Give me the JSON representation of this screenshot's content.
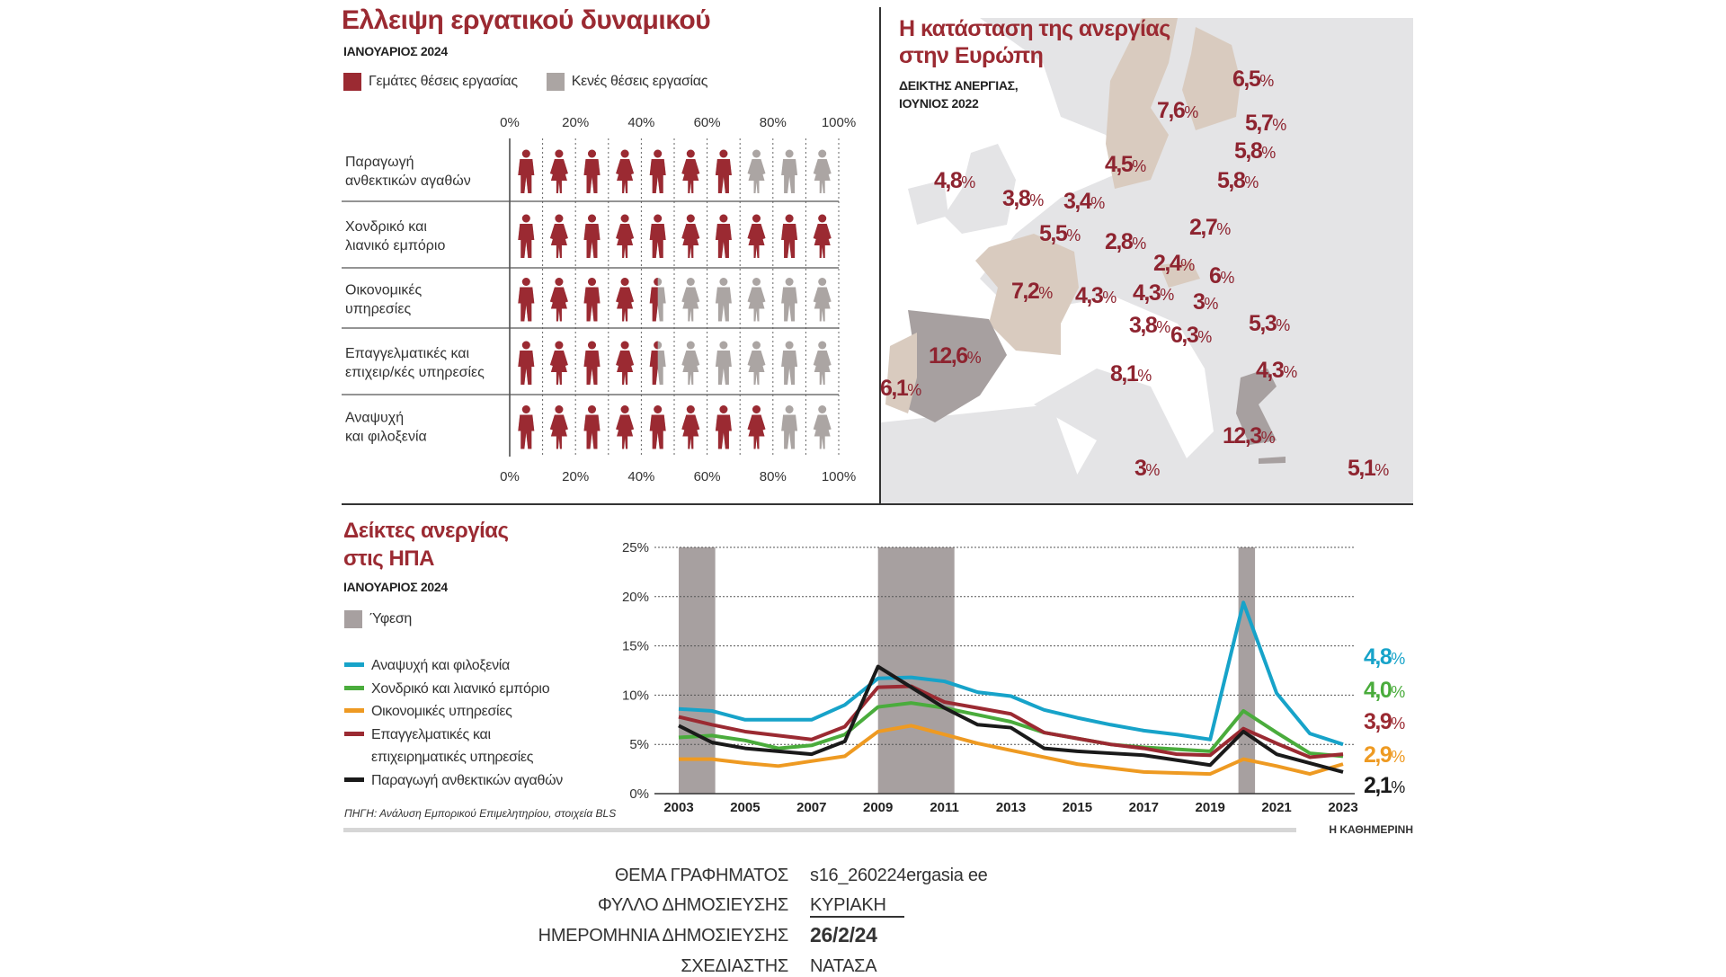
{
  "labor": {
    "title": "Ελλειψη εργατικού δυναμικού",
    "subtitle": "ΙΑΝΟΥΑΡΙΟΣ 2024",
    "legend_filled": "Γεμάτες θέσεις εργασίας",
    "legend_empty": "Κενές θέσεις εργασίας",
    "axis_ticks": [
      "0%",
      "20%",
      "40%",
      "60%",
      "80%",
      "100%"
    ],
    "rows": [
      {
        "label1": "Παραγωγή",
        "label2": "ανθεκτικών αγαθών",
        "filled_fraction": 0.7
      },
      {
        "label1": "Χονδρικό και",
        "label2": "λιανικό εμπόριο",
        "filled_fraction": 1.0
      },
      {
        "label1": "Οικονομικές",
        "label2": "υπηρεσίες",
        "filled_fraction": 0.45
      },
      {
        "label1": "Επαγγελματικές και",
        "label2": "επιχειρ/κές υπηρεσίες",
        "filled_fraction": 0.45
      },
      {
        "label1": "Αναψυχή",
        "label2": "και φιλοξενία",
        "filled_fraction": 0.8
      }
    ],
    "colors": {
      "filled": "#9b2a32",
      "empty": "#aba5a3"
    }
  },
  "map": {
    "title1": "Η κατάσταση της ανεργίας",
    "title2": "στην Ευρώπη",
    "subtitle1": "ΔΕΙΚΤΗΣ ΑΝΕΡΓΙΑΣ,",
    "subtitle2": "ΙΟΥΝΙΟΣ 2022",
    "values": [
      "6,5",
      "7,6",
      "5,7",
      "5,8",
      "4,5",
      "5,8",
      "4,8",
      "3,8",
      "3,4",
      "5,5",
      "2,7",
      "2,8",
      "2,4",
      "6",
      "7,2",
      "4,3",
      "4,3",
      "3",
      "5,3",
      "3,8",
      "6,3",
      "12,6",
      "8,1",
      "4,3",
      "6,1",
      "12,3",
      "3",
      "5,1"
    ],
    "unit": "%"
  },
  "chart_data": {
    "type": "line",
    "title": "Δείκτες ανεργίας στις ΗΠΑ",
    "title1": "Δείκτες ανεργίας",
    "title2": "στις ΗΠΑ",
    "subtitle": "ΙΑΝΟΥΑΡΙΟΣ 2024",
    "recession_label": "Ύφεση",
    "recessions": [
      [
        2003,
        2004.1
      ],
      [
        2009,
        2011.3
      ],
      [
        2019.85,
        2020.35
      ]
    ],
    "x": [
      2003,
      2004,
      2005,
      2006,
      2007,
      2008,
      2009,
      2010,
      2011,
      2012,
      2013,
      2014,
      2015,
      2016,
      2017,
      2018,
      2019,
      2020,
      2021,
      2022,
      2023
    ],
    "x_ticks": [
      "2003",
      "2005",
      "2007",
      "2009",
      "2011",
      "2013",
      "2015",
      "2017",
      "2019",
      "2021",
      "2023"
    ],
    "y_ticks": [
      "0%",
      "5%",
      "10%",
      "15%",
      "20%",
      "25%"
    ],
    "ylim": [
      0,
      25
    ],
    "grid": true,
    "series": [
      {
        "name": "Αναψυχή και φιλοξενία",
        "color": "#17a3c9",
        "end_label": "4,8",
        "values": [
          8.6,
          8.4,
          7.5,
          7.5,
          7.5,
          9.0,
          11.7,
          11.8,
          11.4,
          10.3,
          9.9,
          8.5,
          7.7,
          7.0,
          6.4,
          6.0,
          5.5,
          19.4,
          10.2,
          6.1,
          5.0
        ]
      },
      {
        "name": "Χονδρικό και λιανικό εμπόριο",
        "color": "#4aac3c",
        "end_label": "4,0",
        "values": [
          5.7,
          5.9,
          5.4,
          4.6,
          4.9,
          6.0,
          8.8,
          9.2,
          8.7,
          8.0,
          7.3,
          6.2,
          5.6,
          5.0,
          4.7,
          4.5,
          4.3,
          8.4,
          6.2,
          4.1,
          3.8
        ]
      },
      {
        "name": "Οικονομικές υπηρεσίες",
        "color": "#ee9a22",
        "end_label": "2,9",
        "values": [
          3.5,
          3.5,
          3.1,
          2.8,
          3.3,
          3.8,
          6.3,
          6.9,
          6.0,
          5.1,
          4.4,
          3.7,
          3.0,
          2.6,
          2.2,
          2.1,
          2.0,
          3.5,
          2.8,
          2.0,
          3.0
        ]
      },
      {
        "name": "Επαγγελματικές και επιχειρηματικές υπηρεσίες",
        "name1": "Επαγγελματικές και",
        "name2": "επιχειρηματικές υπηρεσίες",
        "color": "#9b2a32",
        "end_label": "3,9",
        "values": [
          7.8,
          7.0,
          6.3,
          5.9,
          5.5,
          6.8,
          10.8,
          10.9,
          9.3,
          8.7,
          8.1,
          6.2,
          5.6,
          5.0,
          4.6,
          4.0,
          3.9,
          6.6,
          5.1,
          3.7,
          4.0
        ]
      },
      {
        "name": "Παραγωγή ανθεκτικών αγαθών",
        "color": "#1a1a1a",
        "end_label": "2,1",
        "values": [
          6.9,
          5.2,
          4.6,
          4.3,
          4.0,
          5.3,
          12.9,
          10.8,
          8.7,
          7.0,
          6.7,
          4.6,
          4.3,
          4.1,
          3.9,
          3.4,
          2.9,
          6.3,
          4.0,
          3.1,
          2.2
        ]
      }
    ],
    "unit": "%",
    "source": "ΠΗΓΗ: Ανάλυση Εμπορικού Επιμελητηρίου, στοιχεία BLS",
    "credit": "Η ΚΑΘΗΜΕΡΙΝΗ"
  },
  "meta": [
    {
      "key": "ΘΕΜΑ ΓΡΑΦΗΜΑΤΟΣ",
      "value": "s16_260224ergasia ee"
    },
    {
      "key": "ΦΥΛΛΟ ΔΗΜΟΣΙΕΥΣΗΣ",
      "value": "ΚΥΡΙΑΚΗ"
    },
    {
      "key": "ΗΜΕΡΟΜΗΝΙΑ ΔΗΜΟΣΙΕΥΣΗΣ",
      "value": "26/2/24"
    },
    {
      "key": "ΣΧΕΔΙΑΣΤΗΣ",
      "value": "ΝΑΤΑΣΑ"
    }
  ]
}
